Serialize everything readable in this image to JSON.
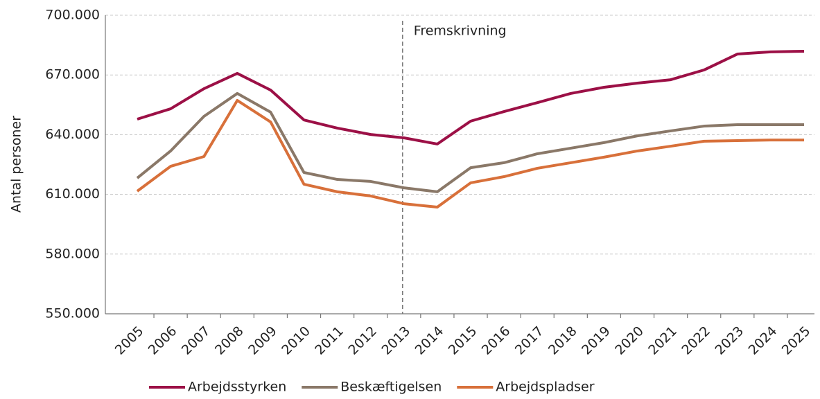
{
  "chart_data": {
    "type": "line",
    "y_label": "Antal personer",
    "categories": [
      "2005",
      "2006",
      "2007",
      "2008",
      "2009",
      "2010",
      "2011",
      "2012",
      "2013",
      "2014",
      "2015",
      "2016",
      "2017",
      "2018",
      "2019",
      "2020",
      "2021",
      "2022",
      "2023",
      "2024",
      "2025"
    ],
    "series": [
      {
        "name": "Arbejdsstyrken",
        "color": "#9c1046",
        "values": [
          647800,
          653000,
          663100,
          670800,
          662400,
          647400,
          643300,
          640100,
          638400,
          635300,
          646800,
          651600,
          656100,
          660700,
          663800,
          665900,
          667600,
          672500,
          680500,
          681600,
          681900
        ]
      },
      {
        "name": "Beskæftigelsen",
        "color": "#8a7868",
        "values": [
          618200,
          631800,
          649200,
          660700,
          651300,
          621000,
          617500,
          616500,
          613300,
          611300,
          623400,
          625900,
          630400,
          633200,
          636000,
          639400,
          641900,
          644300,
          645000,
          645000,
          645000
        ]
      },
      {
        "name": "Arbejdspladser",
        "color": "#d8703a",
        "values": [
          611600,
          624100,
          629000,
          657200,
          646400,
          615100,
          611300,
          609200,
          605300,
          603600,
          615800,
          618900,
          623100,
          625900,
          628700,
          631800,
          634200,
          636700,
          637000,
          637300,
          637300
        ]
      }
    ],
    "ylim": [
      550000,
      700000
    ],
    "yticks": [
      {
        "value": 550000,
        "label": "550.000"
      },
      {
        "value": 580000,
        "label": "580.000"
      },
      {
        "value": 610000,
        "label": "610.000"
      },
      {
        "value": 640000,
        "label": "640.000"
      },
      {
        "value": 670000,
        "label": "670.000"
      },
      {
        "value": 700000,
        "label": "700.000"
      }
    ],
    "grid": true,
    "legend": "bottom",
    "annotation": {
      "text": "Fremskrivning",
      "x": "2013"
    }
  }
}
